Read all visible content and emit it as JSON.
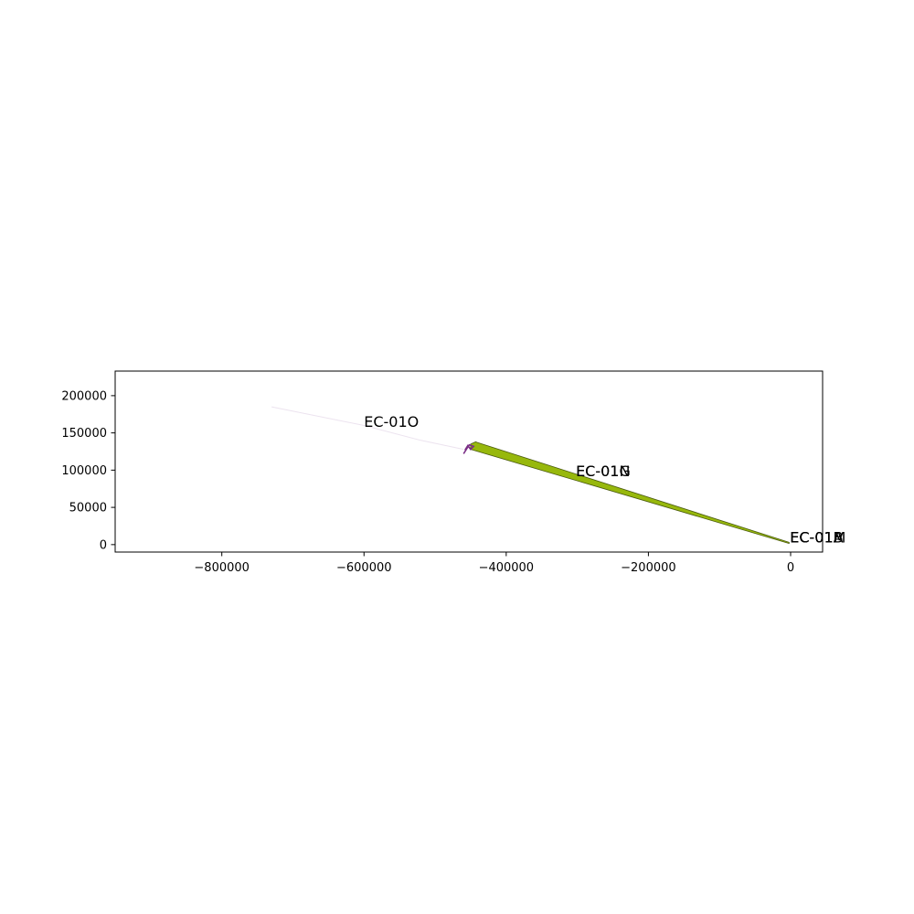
{
  "chart_data": {
    "type": "line",
    "title": "",
    "xlabel": "",
    "ylabel": "",
    "xlim": [
      -950000,
      45000
    ],
    "ylim": [
      -10000,
      233000
    ],
    "grid": false,
    "legend": "none",
    "x_ticks": [
      -800000,
      -600000,
      -400000,
      -200000,
      0
    ],
    "x_tick_labels": [
      "−800000",
      "−600000",
      "−400000",
      "−200000",
      "0"
    ],
    "y_ticks": [
      0,
      50000,
      100000,
      150000,
      200000
    ],
    "y_tick_labels": [
      "0",
      "50000",
      "100000",
      "150000",
      "200000"
    ],
    "shapes": [
      {
        "name": "EC-01O-trail",
        "kind": "line",
        "color": "#d9c8e0",
        "opacity": 0.5,
        "points": [
          [
            -730000,
            185000
          ],
          [
            -600000,
            160000
          ],
          [
            -520000,
            140000
          ],
          [
            -460000,
            128000
          ]
        ]
      },
      {
        "name": "green-band",
        "kind": "polygon",
        "fill": "#97b80c",
        "stroke": "#4a5a10",
        "points": [
          [
            -450000,
            135000
          ],
          [
            -443000,
            138000
          ],
          [
            -440000,
            137000
          ],
          [
            -2000,
            3000
          ],
          [
            -2000,
            1500
          ],
          [
            -450000,
            128000
          ]
        ]
      },
      {
        "name": "purple-cluster",
        "kind": "polyline",
        "color": "#7b2f86",
        "opacity": 1,
        "points": [
          [
            -458000,
            127000
          ],
          [
            -454000,
            133000
          ],
          [
            -450000,
            128000
          ],
          [
            -446000,
            132000
          ],
          [
            -452000,
            134000
          ],
          [
            -460000,
            122000
          ]
        ]
      }
    ],
    "annotations": [
      {
        "text": "EC-01O",
        "x": -600000,
        "y": 158000
      },
      {
        "text": "EC-01N",
        "x": -302000,
        "y": 92000
      },
      {
        "text": "EC-01G",
        "x": -302000,
        "y": 92000
      },
      {
        "text": "EC-01A",
        "x": -1000,
        "y": 3000
      },
      {
        "text": "EC-01B",
        "x": -1000,
        "y": 3000
      },
      {
        "text": "EC-01M",
        "x": -1000,
        "y": 3000
      }
    ]
  }
}
